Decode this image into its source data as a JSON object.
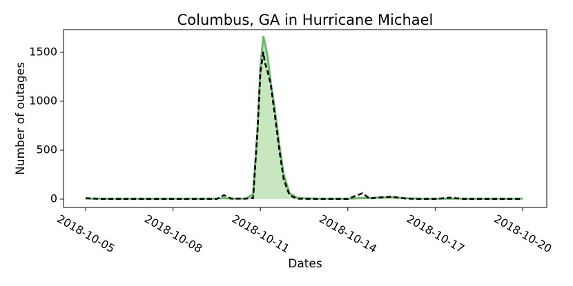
{
  "chart_data": {
    "type": "line",
    "title": "Columbus, GA in Hurricane Michael",
    "xlabel": "Dates",
    "ylabel": "Number of outages",
    "x": [
      0,
      0.5,
      1,
      1.5,
      2,
      2.5,
      3,
      3.5,
      4,
      4.5,
      4.75,
      5,
      5.5,
      5.75,
      5.9,
      6,
      6.1,
      6.15,
      6.25,
      6.35,
      6.5,
      6.65,
      6.8,
      7,
      7.25,
      7.5,
      8,
      8.5,
      9,
      9.5,
      9.75,
      10,
      10.5,
      11,
      11.5,
      12,
      12.5,
      13,
      13.5,
      14,
      14.5,
      15
    ],
    "series": [
      {
        "color": "#6ab86a",
        "fill_color": "#c8e7c1",
        "dashed": false,
        "values": [
          5,
          5,
          5,
          5,
          5,
          5,
          5,
          5,
          5,
          5,
          10,
          5,
          5,
          50,
          700,
          1350,
          1660,
          1600,
          1450,
          1200,
          900,
          550,
          250,
          60,
          15,
          8,
          5,
          5,
          5,
          10,
          10,
          15,
          20,
          8,
          5,
          5,
          5,
          5,
          5,
          5,
          5,
          5
        ]
      },
      {
        "color": "#000000",
        "dashed": true,
        "values": [
          10,
          2,
          2,
          2,
          2,
          2,
          2,
          2,
          2,
          2,
          40,
          5,
          5,
          10,
          700,
          1300,
          1500,
          1400,
          1300,
          1180,
          850,
          500,
          200,
          40,
          5,
          3,
          2,
          2,
          2,
          60,
          5,
          15,
          25,
          5,
          2,
          2,
          15,
          2,
          2,
          2,
          2,
          2
        ]
      }
    ],
    "xlim": [
      -0.76,
      15.83
    ],
    "xticks": [
      {
        "value": 0,
        "label": "2018-10-05"
      },
      {
        "value": 3,
        "label": "2018-10-08"
      },
      {
        "value": 6,
        "label": "2018-10-11"
      },
      {
        "value": 9,
        "label": "2018-10-14"
      },
      {
        "value": 12,
        "label": "2018-10-17"
      },
      {
        "value": 15,
        "label": "2018-10-20"
      }
    ],
    "ylim": [
      -85,
      1732
    ],
    "yticks": [
      0,
      500,
      1000,
      1500
    ],
    "grid": false
  }
}
